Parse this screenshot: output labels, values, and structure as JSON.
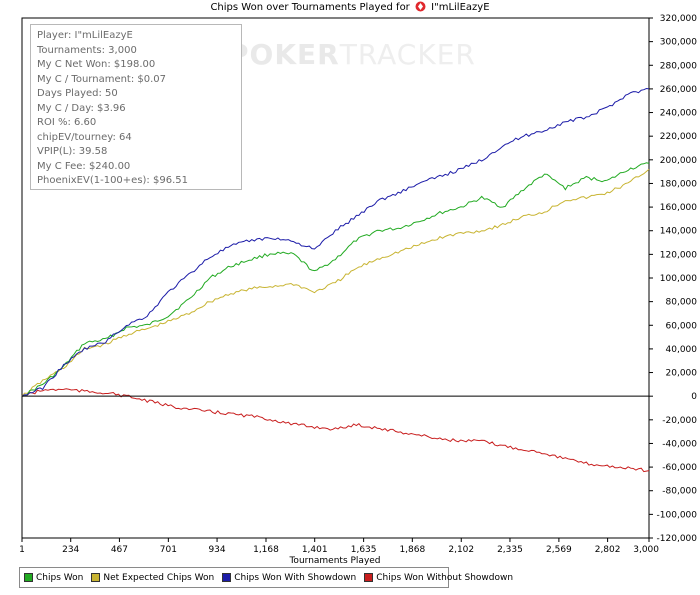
{
  "title": {
    "prefix": "Chips Won over Tournaments Played for",
    "player": "I\"mLilEazyE"
  },
  "watermark": {
    "bold": "POKER",
    "light": "TRACKER"
  },
  "stats": [
    "Player: I\"mLilEazyE",
    "Tournaments: 3,000",
    "My C Net Won: $198.00",
    "My C / Tournament: $0.07",
    "Days Played: 50",
    "My C / Day: $3.96",
    "ROI %: 6.60",
    "chipEV/tourney: 64",
    "VPIP(L): 39.58",
    "My C Fee: $240.00",
    "PhoenixEV(1-100+es): $96.51"
  ],
  "colors": {
    "chips_won": "#22aa22",
    "net_expected": "#c8b432",
    "with_showdown": "#1c1ca8",
    "without_showdown": "#c81e1e",
    "logo": "#e0282d"
  },
  "legend": [
    {
      "label": "Chips Won",
      "color": "#22aa22"
    },
    {
      "label": "Net Expected Chips Won",
      "color": "#c8b432"
    },
    {
      "label": "Chips Won With Showdown",
      "color": "#1c1ca8"
    },
    {
      "label": "Chips Won Without Showdown",
      "color": "#c81e1e"
    }
  ],
  "chart_data": {
    "type": "line",
    "title": "Chips Won over Tournaments Played for I\"mLilEazyE",
    "xlabel": "Tournaments Played",
    "ylabel": "",
    "xlim": [
      1,
      3000
    ],
    "ylim": [
      -120000,
      320000
    ],
    "x_ticks": [
      1,
      234,
      467,
      701,
      934,
      1168,
      1401,
      1635,
      1868,
      2102,
      2335,
      2569,
      2802,
      3000
    ],
    "x_tick_labels": [
      "1",
      "234",
      "467",
      "701",
      "934",
      "1,168",
      "1,401",
      "1,635",
      "1,868",
      "2,102",
      "2,335",
      "2,569",
      "2,802",
      "3,000"
    ],
    "y_ticks": [
      -120000,
      -100000,
      -80000,
      -60000,
      -40000,
      -20000,
      0,
      20000,
      40000,
      60000,
      80000,
      100000,
      120000,
      140000,
      160000,
      180000,
      200000,
      220000,
      240000,
      260000,
      280000,
      300000,
      320000
    ],
    "y_tick_labels": [
      "-120,000",
      "-100,000",
      "-80,000",
      "-60,000",
      "-40,000",
      "-20,000",
      "0",
      "20,000",
      "40,000",
      "60,000",
      "80,000",
      "100,000",
      "120,000",
      "140,000",
      "160,000",
      "180,000",
      "200,000",
      "220,000",
      "240,000",
      "260,000",
      "280,000",
      "300,000",
      "320,000"
    ],
    "y_axis_side": "right",
    "grid": false,
    "legend_position": "bottom-left",
    "series": [
      {
        "name": "Chips Won",
        "color": "#22aa22",
        "x": [
          1,
          100,
          200,
          300,
          400,
          500,
          600,
          700,
          800,
          900,
          1000,
          1100,
          1200,
          1300,
          1400,
          1500,
          1600,
          1700,
          1800,
          1900,
          2000,
          2100,
          2200,
          2300,
          2400,
          2500,
          2600,
          2700,
          2800,
          2900,
          3000
        ],
        "y": [
          0,
          10000,
          25000,
          45000,
          48000,
          58000,
          60000,
          68000,
          82000,
          100000,
          110000,
          116000,
          121000,
          120000,
          105000,
          116000,
          132000,
          140000,
          142000,
          148000,
          155000,
          160000,
          168000,
          160000,
          175000,
          188000,
          176000,
          185000,
          182000,
          192000,
          197000
        ]
      },
      {
        "name": "Net Expected Chips Won",
        "color": "#c8b432",
        "x": [
          1,
          100,
          200,
          300,
          400,
          500,
          600,
          700,
          800,
          900,
          1000,
          1100,
          1200,
          1300,
          1400,
          1500,
          1600,
          1700,
          1800,
          1900,
          2000,
          2100,
          2200,
          2300,
          2400,
          2500,
          2600,
          2700,
          2800,
          2900,
          3000
        ],
        "y": [
          0,
          13000,
          24000,
          40000,
          44000,
          52000,
          57000,
          63000,
          70000,
          80000,
          87000,
          91000,
          93000,
          95000,
          88000,
          96000,
          108000,
          116000,
          122000,
          128000,
          134000,
          138000,
          140000,
          145000,
          152000,
          156000,
          166000,
          168000,
          172000,
          180000,
          192000
        ]
      },
      {
        "name": "Chips Won With Showdown",
        "color": "#1c1ca8",
        "x": [
          1,
          100,
          200,
          300,
          400,
          500,
          600,
          700,
          800,
          900,
          1000,
          1100,
          1200,
          1300,
          1400,
          1500,
          1600,
          1700,
          1800,
          1900,
          2000,
          2100,
          2200,
          2300,
          2400,
          2500,
          2600,
          2700,
          2800,
          2900,
          3000
        ],
        "y": [
          0,
          7000,
          26000,
          40000,
          46000,
          60000,
          68000,
          88000,
          103000,
          118000,
          127000,
          132000,
          134000,
          131000,
          124000,
          140000,
          152000,
          165000,
          172000,
          180000,
          186000,
          192000,
          200000,
          212000,
          220000,
          225000,
          232000,
          236000,
          244000,
          256000,
          260000
        ]
      },
      {
        "name": "Chips Won Without Showdown",
        "color": "#c81e1e",
        "x": [
          1,
          100,
          200,
          300,
          400,
          500,
          600,
          700,
          800,
          900,
          1000,
          1100,
          1200,
          1300,
          1400,
          1500,
          1600,
          1700,
          1800,
          1900,
          2000,
          2100,
          2200,
          2300,
          2400,
          2500,
          2600,
          2700,
          2800,
          2900,
          3000
        ],
        "y": [
          0,
          5000,
          6000,
          4000,
          3000,
          0,
          -4000,
          -8000,
          -11000,
          -13000,
          -15000,
          -17000,
          -20000,
          -24000,
          -26000,
          -28000,
          -24000,
          -27000,
          -30000,
          -33000,
          -36000,
          -38000,
          -38000,
          -42000,
          -45000,
          -48000,
          -53000,
          -57000,
          -59000,
          -61000,
          -63000
        ]
      }
    ]
  }
}
